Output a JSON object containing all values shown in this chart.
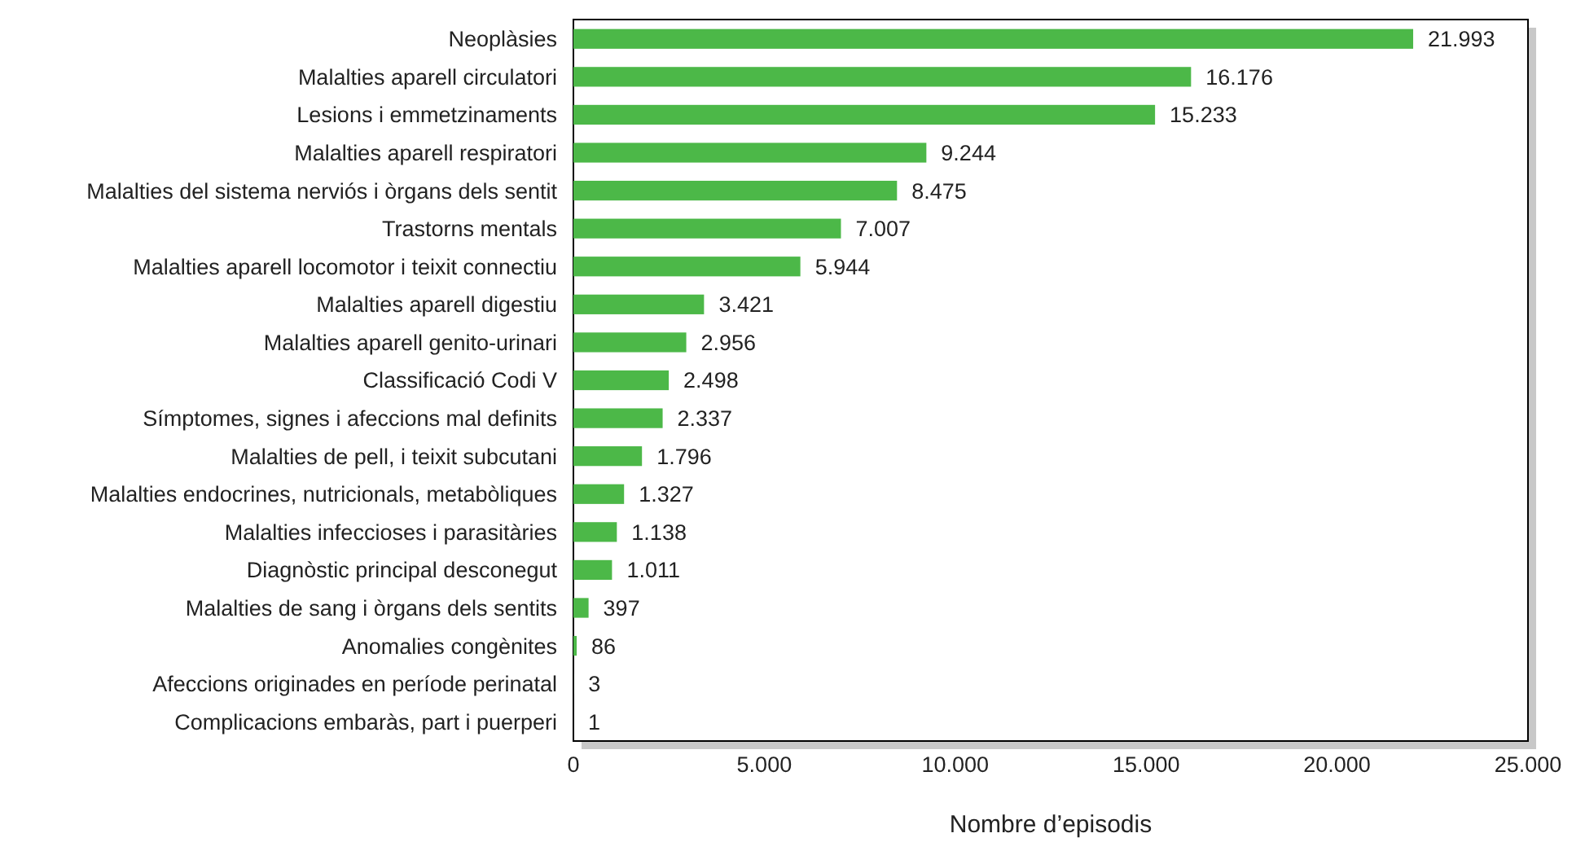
{
  "chart_data": {
    "type": "bar",
    "orientation": "horizontal",
    "xlabel": "Nombre d’episodis",
    "categories": [
      "Neoplàsies",
      "Malalties aparell circulatori",
      "Lesions i emmetzinaments",
      "Malalties aparell respiratori",
      "Malalties del sistema nerviós i òrgans dels sentit",
      "Trastorns mentals",
      "Malalties aparell locomotor i teixit connectiu",
      "Malalties aparell digestiu",
      "Malalties aparell genito-urinari",
      "Classificació Codi V",
      "Símptomes, signes i afeccions mal definits",
      "Malalties de pell, i teixit subcutani",
      "Malalties endocrines, nutricionals, metabòliques",
      "Malalties infeccioses i parasitàries",
      "Diagnòstic principal desconegut",
      "Malalties de sang i òrgans dels sentits",
      "Anomalies congènites",
      "Afeccions originades en període perinatal",
      "Complicacions embaràs, part i puerperi"
    ],
    "values": [
      21993,
      16176,
      15233,
      9244,
      8475,
      7007,
      5944,
      3421,
      2956,
      2498,
      2337,
      1796,
      1327,
      1138,
      1011,
      397,
      86,
      3,
      1
    ],
    "value_labels": [
      "21.993",
      "16.176",
      "15.233",
      "9.244",
      "8.475",
      "7.007",
      "5.944",
      "3.421",
      "2.956",
      "2.498",
      "2.337",
      "1.796",
      "1.327",
      "1.138",
      "1.011",
      "397",
      "86",
      "3",
      "1"
    ],
    "color": "#4cb848",
    "xlim": [
      0,
      25000
    ],
    "xticks": [
      0,
      {
        "value": 5000,
        "label": "5.000"
      },
      {
        "value": 10000,
        "label": "10.000"
      },
      {
        "value": 15000,
        "label": "15.000"
      },
      {
        "value": 20000,
        "label": "20.000"
      },
      {
        "value": 25000,
        "label": "25.000"
      }
    ],
    "grid": false
  }
}
